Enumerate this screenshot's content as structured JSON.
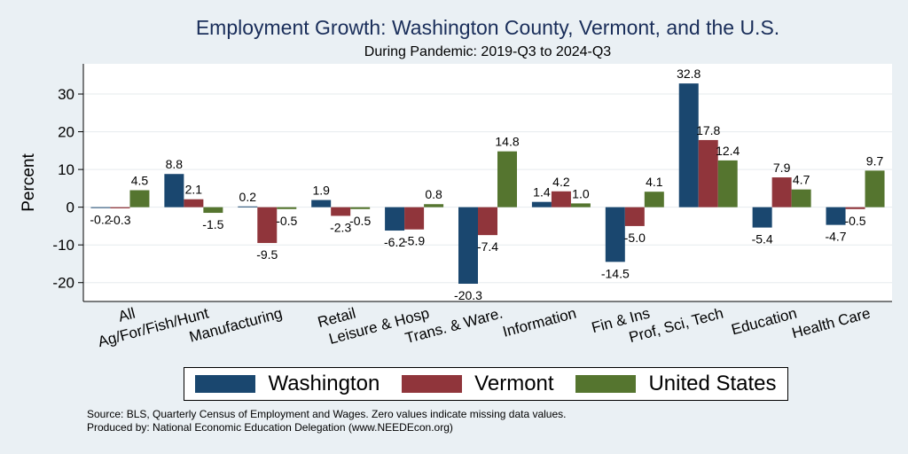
{
  "chart_data": {
    "type": "bar",
    "title": "Employment Growth: Washington County, Vermont, and the U.S.",
    "subtitle": "During Pandemic: 2019-Q3 to 2024-Q3",
    "ylabel": "Percent",
    "ylim": [
      -25,
      38
    ],
    "yticks": [
      -20,
      -10,
      0,
      10,
      20,
      30
    ],
    "grid": true,
    "legend_position": "bottom",
    "categories": [
      "All",
      "Ag/For/Fish/Hunt",
      "Manufacturing",
      "Retail",
      "Leisure & Hosp",
      "Trans. & Ware.",
      "Information",
      "Fin & Ins",
      "Prof, Sci, Tech",
      "Education",
      "Health Care"
    ],
    "series": [
      {
        "name": "Washington",
        "color": "#1a476f",
        "values": [
          -0.2,
          8.8,
          0.2,
          1.9,
          -6.2,
          -20.3,
          1.4,
          -14.5,
          32.8,
          -5.4,
          -4.7
        ]
      },
      {
        "name": "Vermont",
        "color": "#90353b",
        "values": [
          -0.3,
          2.1,
          -9.5,
          -2.3,
          -5.9,
          -7.4,
          4.2,
          -5.0,
          17.8,
          7.9,
          -0.5
        ]
      },
      {
        "name": "United States",
        "color": "#55752f",
        "values": [
          4.5,
          -1.5,
          -0.5,
          -0.5,
          0.8,
          14.8,
          1.0,
          4.1,
          12.4,
          4.7,
          9.7
        ]
      }
    ]
  },
  "notes": {
    "source": "Source: BLS, Quarterly Census of Employment and Wages. Zero values indicate missing data values.",
    "produced_by": "Produced by: National Economic Education Delegation (www.NEEDEcon.org)"
  }
}
